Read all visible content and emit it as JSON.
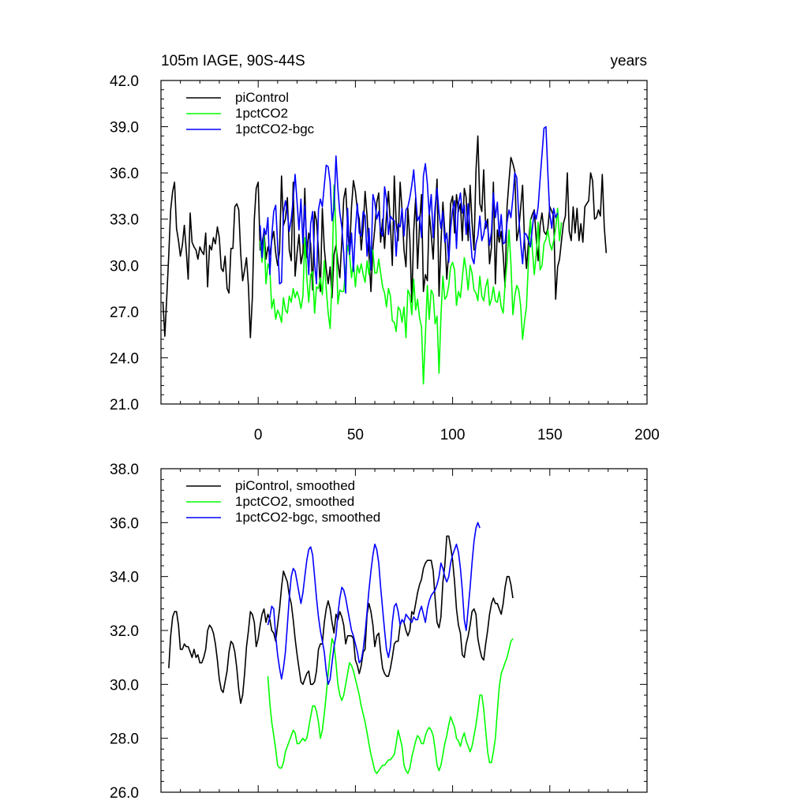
{
  "chart_data": [
    {
      "type": "line",
      "title_left": "105m IAGE, 90S-44S",
      "title_right": "years",
      "ylim": [
        21.0,
        42.0
      ],
      "xlim": [
        -50,
        200
      ],
      "yticks": [
        "21.0",
        "24.0",
        "27.0",
        "30.0",
        "33.0",
        "36.0",
        "39.0",
        "42.0"
      ],
      "xticks": [
        "0",
        "50",
        "100",
        "150",
        "200"
      ],
      "legend_position": "top-left",
      "series": [
        {
          "name": "piControl",
          "color": "#000000",
          "x0": -49,
          "values": [
            27.6,
            25.4,
            28.0,
            30.7,
            33.6,
            34.8,
            35.4,
            32.4,
            31.6,
            30.6,
            31.3,
            32.6,
            31.0,
            29.1,
            33.4,
            31.5,
            31.2,
            31.0,
            30.4,
            31.2,
            30.9,
            30.7,
            32.1,
            28.6,
            31.3,
            31.0,
            31.8,
            31.4,
            32.5,
            31.8,
            29.8,
            29.6,
            30.6,
            28.5,
            28.2,
            31.1,
            31.1,
            33.8,
            34.0,
            33.6,
            30.8,
            29.0,
            29.7,
            30.5,
            28.6,
            25.3,
            27.9,
            33.0,
            35.0,
            35.4,
            31.0,
            31.4,
            32.2,
            30.4,
            31.2,
            30.7,
            31.6,
            32.2,
            30.8,
            30.0,
            30.9,
            35.8,
            32.6,
            33.0,
            34.4,
            31.0,
            30.3,
            35.4,
            29.3,
            30.8,
            32.0,
            30.1,
            30.8,
            35.0,
            30.5,
            32.1,
            31.4,
            28.4,
            33.5,
            32.9,
            31.0,
            28.3,
            33.7,
            31.1,
            29.8,
            28.8,
            29.9,
            27.9,
            30.7,
            31.3,
            30.2,
            29.2,
            31.6,
            34.3,
            35.0,
            32.6,
            30.7,
            33.8,
            35.5,
            34.8,
            33.6,
            33.0,
            31.0,
            32.5,
            34.8,
            33.2,
            30.7,
            28.3,
            31.1,
            32.4,
            34.1,
            34.7,
            31.5,
            33.0,
            31.1,
            33.3,
            34.8,
            32.6,
            30.0,
            35.8,
            32.8,
            31.6,
            35.4,
            33.6,
            31.0,
            29.9,
            33.7,
            31.7,
            27.6,
            32.2,
            34.4,
            29.8,
            32.7,
            34.6,
            28.3,
            29.4,
            29.0,
            33.4,
            32.0,
            30.4,
            33.4,
            35.6,
            28.0,
            31.4,
            34.1,
            32.2,
            29.1,
            30.8,
            34.0,
            34.5,
            32.1,
            34.6,
            33.5,
            34.0,
            31.6,
            35.0,
            34.4,
            31.6,
            35.2,
            32.8,
            31.0,
            36.1,
            38.4,
            34.0,
            33.5,
            36.2,
            32.4,
            33.0,
            30.1,
            31.2,
            35.4,
            28.8,
            32.3,
            31.5,
            32.2,
            30.7,
            28.6,
            33.8,
            35.5,
            37.0,
            36.6,
            36.1,
            31.6,
            32.3,
            33.7,
            35.2,
            31.5,
            29.8,
            31.5,
            32.9,
            33.3,
            33.6,
            31.7,
            30.3,
            32.6,
            33.4,
            32.2,
            32.0,
            32.4,
            33.8,
            33.5,
            33.2,
            27.8,
            29.9,
            30.4,
            31.6,
            32.7,
            33.2,
            36.0,
            32.2,
            31.6,
            33.8,
            32.1,
            33.7,
            31.6,
            32.7,
            31.5,
            33.8,
            34.0,
            34.2,
            36.0,
            35.5,
            33.0,
            33.1,
            33.6,
            33.2,
            35.9,
            32.5,
            30.8
          ]
        },
        {
          "name": "1pctCO2",
          "color": "#00ff00",
          "x0": 1,
          "values": [
            31.6,
            30.2,
            31.9,
            28.8,
            30.1,
            29.7,
            27.2,
            27.8,
            26.5,
            27.1,
            26.8,
            26.3,
            27.9,
            27.1,
            26.9,
            28.0,
            27.6,
            28.5,
            27.9,
            28.3,
            27.9,
            27.2,
            28.0,
            31.8,
            29.2,
            27.6,
            29.4,
            29.6,
            26.9,
            28.6,
            28.5,
            29.2,
            28.1,
            30.3,
            28.5,
            26.9,
            25.9,
            29.2,
            35.2,
            32.1,
            27.5,
            28.4,
            28.3,
            28.3,
            29.8,
            31.3,
            30.7,
            29.2,
            30.2,
            28.6,
            30.0,
            29.5,
            30.1,
            29.4,
            28.9,
            30.3,
            29.4,
            31.2,
            30.9,
            29.5,
            29.5,
            30.4,
            29.5,
            28.6,
            28.2,
            27.3,
            28.5,
            28.0,
            26.4,
            26.3,
            25.7,
            27.3,
            27.1,
            26.3,
            27.3,
            25.3,
            28.4,
            28.1,
            26.8,
            29.1,
            27.1,
            27.8,
            26.6,
            26.0,
            22.3,
            25.4,
            28.7,
            26.5,
            28.4,
            28.1,
            26.2,
            26.7,
            23.0,
            26.7,
            29.3,
            27.8,
            28.0,
            28.7,
            29.9,
            30.2,
            29.7,
            27.4,
            28.3,
            27.9,
            29.2,
            30.5,
            29.7,
            28.4,
            30.0,
            29.5,
            28.4,
            28.2,
            27.7,
            29.3,
            28.0,
            27.7,
            28.6,
            29.1,
            27.4,
            27.8,
            28.6,
            27.7,
            27.6,
            28.3,
            27.3,
            26.9,
            28.8,
            30.2,
            32.3,
            30.1,
            26.8,
            28.0,
            28.7,
            28.4,
            27.4,
            25.2,
            26.4,
            27.3,
            30.2,
            33.0,
            31.1,
            29.4,
            30.7,
            32.8,
            29.7,
            30.0,
            31.4,
            31.7,
            32.3,
            31.4,
            31.0,
            31.6,
            32.4,
            33.7,
            31.6,
            32.8
          ]
        },
        {
          "name": "1pctCO2-bgc",
          "color": "#0000ff",
          "x0": 1,
          "values": [
            32.6,
            30.5,
            32.4,
            32.0,
            33.1,
            29.4,
            31.9,
            33.5,
            33.9,
            31.4,
            28.8,
            28.9,
            33.4,
            34.2,
            33.4,
            32.2,
            33.0,
            34.3,
            35.9,
            34.1,
            32.3,
            34.3,
            31.4,
            33.9,
            31.4,
            29.4,
            32.7,
            33.5,
            30.1,
            28.8,
            33.6,
            34.3,
            33.8,
            35.2,
            36.5,
            36.4,
            35.4,
            32.9,
            33.7,
            37.1,
            35.0,
            33.4,
            32.5,
            30.8,
            28.2,
            33.7,
            30.7,
            32.1,
            29.6,
            32.3,
            34.0,
            32.1,
            31.9,
            33.5,
            33.2,
            30.6,
            32.4,
            29.7,
            34.6,
            34.1,
            33.0,
            33.5,
            32.2,
            31.9,
            35.1,
            34.3,
            32.0,
            33.2,
            33.0,
            32.9,
            30.6,
            32.7,
            32.5,
            33.7,
            31.9,
            33.6,
            33.8,
            34.4,
            35.2,
            36.2,
            34.5,
            32.9,
            33.2,
            31.8,
            35.8,
            36.6,
            35.3,
            33.3,
            34.6,
            31.8,
            33.8,
            35.0,
            33.4,
            32.4,
            33.5,
            31.5,
            32.1,
            30.2,
            32.4,
            33.6,
            34.2,
            31.1,
            34.0,
            34.7,
            33.4,
            33.9,
            32.0,
            34.0,
            32.1,
            30.5,
            30.1,
            31.4,
            31.9,
            33.2,
            31.6,
            32.0,
            32.9,
            32.5,
            31.3,
            32.2,
            34.7,
            33.1,
            34.1,
            31.9,
            33.3,
            31.4,
            31.5,
            32.8,
            33.6,
            33.1,
            34.4,
            36.0,
            35.7,
            33.2,
            31.5,
            30.1,
            32.1,
            32.0,
            31.6,
            31.2,
            32.4,
            33.5,
            33.0,
            33.8,
            35.6,
            37.2,
            38.9,
            39.0,
            36.0,
            33.3,
            32.4,
            33.7,
            33.1,
            33.4
          ]
        }
      ]
    },
    {
      "type": "line",
      "ylim": [
        26.0,
        38.0
      ],
      "xlim": [
        -50,
        200
      ],
      "yticks": [
        "26.0",
        "28.0",
        "30.0",
        "32.0",
        "34.0",
        "36.0",
        "38.0"
      ],
      "legend_position": "top-left",
      "series": [
        {
          "name": "piControl, smoothed",
          "color": "#000000",
          "x0": -46,
          "values": [
            30.6,
            31.8,
            32.5,
            32.7,
            32.7,
            32.2,
            31.3,
            31.3,
            31.5,
            31.4,
            31.4,
            31.2,
            31.0,
            31.3,
            31.0,
            31.1,
            30.8,
            30.8,
            31.0,
            31.3,
            32.0,
            32.2,
            32.1,
            31.9,
            31.5,
            30.9,
            30.2,
            29.8,
            29.7,
            30.1,
            30.5,
            31.2,
            31.6,
            31.5,
            31.2,
            30.6,
            29.8,
            29.3,
            29.6,
            30.4,
            31.4,
            32.0,
            32.7,
            32.6,
            32.3,
            31.4,
            31.7,
            32.2,
            32.6,
            32.8,
            32.3,
            32.6,
            32.4,
            32.0,
            31.9,
            31.6,
            32.2,
            32.8,
            33.6,
            34.2,
            34.0,
            33.8,
            33.3,
            33.0,
            32.4,
            31.7,
            31.1,
            30.6,
            30.1,
            30.0,
            30.2,
            30.4,
            30.5,
            30.0,
            30.0,
            30.1,
            30.5,
            31.3,
            31.5,
            31.5,
            32.3,
            32.8,
            33.1,
            32.8,
            32.3,
            31.9,
            32.6,
            32.4,
            32.7,
            32.5,
            32.2,
            31.5,
            31.8,
            31.8,
            31.8,
            31.7,
            30.9,
            30.7,
            30.4,
            30.7,
            31.2,
            31.3,
            32.6,
            33.0,
            32.7,
            32.2,
            31.4,
            31.8,
            31.9,
            31.2,
            30.6,
            30.4,
            30.3,
            30.3,
            30.6,
            31.0,
            31.5,
            31.6,
            31.6,
            32.2,
            32.4,
            32.3,
            32.0,
            31.8,
            32.0,
            32.7,
            32.6,
            33.0,
            33.4,
            33.7,
            33.9,
            34.3,
            34.5,
            34.6,
            34.6,
            34.6,
            34.2,
            33.2,
            32.3,
            32.1,
            32.5,
            33.8,
            34.4,
            35.5,
            35.5,
            35.1,
            34.6,
            33.8,
            32.8,
            32.2,
            31.9,
            31.1,
            31.0,
            31.5,
            31.8,
            32.2,
            32.7,
            32.8,
            32.6,
            31.7,
            31.3,
            31.0,
            30.9,
            31.5,
            32.0,
            32.6,
            33.0,
            33.2,
            33.0,
            33.0,
            32.8,
            32.6,
            33.0,
            33.6,
            34.0,
            34.0,
            33.7,
            33.2
          ]
        },
        {
          "name": "1pctCO2, smoothed",
          "color": "#00ff00",
          "x0": 5,
          "values": [
            30.3,
            29.3,
            28.6,
            28.1,
            27.6,
            27.0,
            26.9,
            26.9,
            27.1,
            27.5,
            27.7,
            27.9,
            28.1,
            28.3,
            28.2,
            27.8,
            27.8,
            27.9,
            28.0,
            27.9,
            28.0,
            28.4,
            28.8,
            29.2,
            29.2,
            29.0,
            28.6,
            28.0,
            28.3,
            28.9,
            29.6,
            30.4,
            31.1,
            31.7,
            31.5,
            30.8,
            30.0,
            29.6,
            29.4,
            29.6,
            30.0,
            30.4,
            30.8,
            30.7,
            30.5,
            30.2,
            29.9,
            29.6,
            29.2,
            28.9,
            28.6,
            28.2,
            27.8,
            27.4,
            27.1,
            26.8,
            26.7,
            26.8,
            26.9,
            27.0,
            27.0,
            27.1,
            27.2,
            27.2,
            27.3,
            27.4,
            27.8,
            28.3,
            28.0,
            27.7,
            27.0,
            26.8,
            26.7,
            26.9,
            27.3,
            27.6,
            27.9,
            28.1,
            28.0,
            27.8,
            27.8,
            28.1,
            28.3,
            28.4,
            28.3,
            28.1,
            27.6,
            27.0,
            26.8,
            27.0,
            27.4,
            27.8,
            28.1,
            28.5,
            28.8,
            28.6,
            28.4,
            28.0,
            27.9,
            27.7,
            28.0,
            28.2,
            27.9,
            27.7,
            27.5,
            27.7,
            28.1,
            28.5,
            29.0,
            29.6,
            29.6,
            29.1,
            28.3,
            27.5,
            27.1,
            27.1,
            27.5,
            28.0,
            29.0,
            29.9,
            30.4,
            30.6,
            30.8,
            31.0,
            31.3,
            31.6,
            31.7
          ]
        },
        {
          "name": "1pctCO2-bgc, smoothed",
          "color": "#0000ff",
          "x0": 5,
          "values": [
            32.2,
            32.5,
            32.9,
            32.8,
            31.8,
            31.1,
            30.6,
            30.2,
            30.6,
            31.2,
            32.2,
            33.2,
            34.0,
            34.3,
            34.2,
            33.8,
            33.4,
            33.0,
            33.4,
            34.0,
            34.6,
            35.0,
            35.1,
            34.8,
            34.0,
            33.2,
            32.5,
            32.0,
            31.6,
            31.2,
            30.5,
            30.0,
            30.2,
            30.8,
            31.4,
            31.8,
            32.6,
            33.2,
            33.6,
            33.5,
            33.2,
            32.8,
            32.4,
            32.0,
            31.8,
            31.5,
            31.2,
            30.8,
            30.9,
            31.3,
            31.9,
            32.7,
            33.5,
            34.2,
            34.8,
            35.2,
            35.0,
            34.5,
            33.6,
            32.8,
            32.0,
            31.3,
            31.0,
            31.4,
            32.3,
            32.9,
            33.0,
            32.7,
            32.2,
            32.4,
            32.3,
            32.6,
            32.5,
            32.4,
            32.3,
            32.5,
            32.4,
            32.4,
            32.7,
            32.9,
            32.6,
            32.3,
            32.8,
            33.1,
            33.3,
            33.4,
            33.5,
            33.7,
            34.0,
            34.5,
            34.3,
            34.0,
            33.8,
            34.0,
            34.5,
            34.8,
            35.0,
            35.2,
            34.9,
            34.3,
            33.5,
            32.4,
            32.0,
            32.8,
            33.6,
            34.5,
            35.3,
            35.8,
            36.0,
            35.8
          ]
        }
      ]
    }
  ]
}
